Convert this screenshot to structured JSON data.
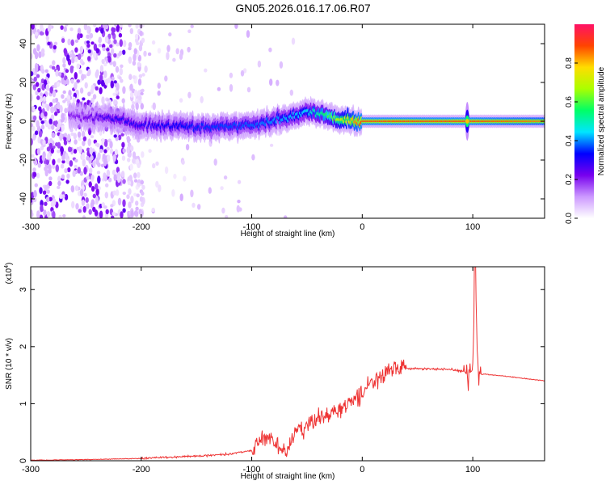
{
  "title": "GN05.2026.016.17.06.R07",
  "chart_data": [
    {
      "type": "heatmap",
      "xlabel": "Height of straight line (km)",
      "ylabel": "Frequency (Hz)",
      "xlim": [
        -300,
        165
      ],
      "ylim": [
        -50,
        50
      ],
      "xticks": [
        -300,
        -200,
        -100,
        0,
        100
      ],
      "yticks": [
        -40,
        -20,
        0,
        20,
        40
      ],
      "colorbar": {
        "label": "Normalized spectral amplitude",
        "range": [
          0,
          1
        ],
        "ticks": [
          "0.0",
          "0.2",
          "0.4",
          "0.6",
          "0.8"
        ],
        "tick_values": [
          0.0,
          0.2,
          0.4,
          0.6,
          0.8
        ],
        "stops": [
          "#ffffff",
          "#cc99ff",
          "#7700ee",
          "#0000ff",
          "#00e5ff",
          "#00ff66",
          "#aaff00",
          "#ffdd00",
          "#ff4400",
          "#ff1166"
        ]
      },
      "ridge": {
        "x": [
          -260,
          -220,
          -200,
          -150,
          -100,
          -70,
          -50,
          -35,
          -20,
          -5,
          0,
          90,
          95,
          165
        ],
        "freq_hz": [
          3,
          1,
          -2,
          -3,
          -2,
          2,
          5,
          3,
          1,
          0,
          0,
          0,
          0,
          0
        ],
        "peak_amplitude": [
          0.2,
          0.3,
          0.3,
          0.35,
          0.38,
          0.42,
          0.45,
          0.55,
          0.7,
          0.85,
          0.9,
          0.9,
          0.9,
          0.85
        ]
      },
      "spike_at_km": 95
    },
    {
      "type": "line",
      "xlabel": "Height of straight line (km)",
      "ylabel": "SNR (10 * v/v)",
      "yexponent_label": "(x10",
      "yexponent_sup": "4",
      "yexponent_close": ")",
      "xlim": [
        -300,
        165
      ],
      "ylim": [
        0,
        3.4
      ],
      "xticks": [
        -300,
        -200,
        -100,
        0,
        100
      ],
      "yticks": [
        0,
        1,
        2,
        3
      ],
      "color": "#ee3333",
      "series": [
        {
          "x": [
            -300,
            -250,
            -200,
            -180,
            -150,
            -120,
            -100,
            -90,
            -80,
            -70,
            -60,
            -50,
            -40,
            -30,
            -20,
            -10,
            0,
            10,
            20,
            30,
            40,
            60,
            80,
            95,
            100,
            102,
            105,
            110,
            130,
            165
          ],
          "y": [
            0.01,
            0.02,
            0.04,
            0.06,
            0.08,
            0.12,
            0.18,
            0.4,
            0.35,
            0.12,
            0.5,
            0.6,
            0.75,
            0.8,
            0.9,
            1.0,
            1.2,
            1.4,
            1.55,
            1.6,
            1.62,
            1.61,
            1.6,
            1.55,
            1.5,
            3.4,
            1.5,
            1.52,
            1.48,
            1.4
          ]
        }
      ]
    }
  ]
}
